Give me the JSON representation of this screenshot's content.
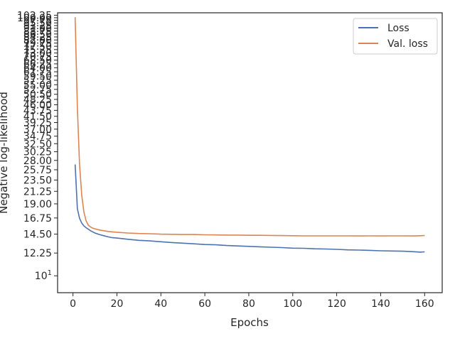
{
  "chart_data": {
    "type": "line",
    "xlabel": "Epochs",
    "ylabel": "Negative log-likelihood",
    "yscale": "log",
    "xlim": [
      -7,
      168
    ],
    "ylim": [
      8.6,
      104.5
    ],
    "x_ticks": [
      0,
      20,
      40,
      60,
      80,
      100,
      120,
      140,
      160
    ],
    "y_tick_values": [
      10,
      12.25,
      14.5,
      16.75,
      19.0,
      21.25,
      23.5,
      25.75,
      28.0,
      30.25,
      32.5,
      34.75,
      37.0,
      39.25,
      41.5,
      43.75,
      46.0,
      48.25,
      50.5,
      52.75,
      55.0,
      57.25,
      59.5,
      61.75,
      64.0,
      66.25,
      68.5,
      70.75,
      73.0,
      75.25,
      77.5,
      79.75,
      82.0,
      84.25,
      86.5,
      88.75,
      91.0,
      93.25,
      95.5,
      97.75,
      100.0,
      102.25
    ],
    "y_tick_labels": [
      "10^1",
      "12.25",
      "14.50",
      "16.75",
      "19.00",
      "21.25",
      "23.50",
      "25.75",
      "28.00",
      "30.25",
      "32.50",
      "34.75",
      "37.00",
      "39.25",
      "41.50",
      "43.75",
      "46.00",
      "48.25",
      "50.50",
      "52.75",
      "55.00",
      "57.25",
      "59.50",
      "61.75",
      "64.00",
      "66.25",
      "68.50",
      "70.75",
      "73.00",
      "75.25",
      "77.50",
      "79.75",
      "82.00",
      "84.25",
      "86.50",
      "88.75",
      "91.00",
      "93.25",
      "95.50",
      "97.75",
      "100.00",
      "102.25"
    ],
    "legend_position": "top-right",
    "series": [
      {
        "name": "Loss",
        "color": "#4c72b0",
        "x": [
          1,
          2,
          3,
          4,
          5,
          6,
          7,
          8,
          9,
          10,
          12,
          14,
          16,
          18,
          20,
          25,
          30,
          35,
          40,
          45,
          50,
          55,
          60,
          65,
          70,
          75,
          80,
          85,
          90,
          95,
          100,
          105,
          110,
          115,
          120,
          125,
          130,
          135,
          140,
          145,
          150,
          155,
          158,
          160
        ],
        "y": [
          27.0,
          18.2,
          16.7,
          16.0,
          15.6,
          15.35,
          15.15,
          14.95,
          14.8,
          14.65,
          14.45,
          14.3,
          14.15,
          14.05,
          14.0,
          13.85,
          13.72,
          13.65,
          13.55,
          13.45,
          13.38,
          13.3,
          13.22,
          13.18,
          13.1,
          13.05,
          13.0,
          12.95,
          12.9,
          12.86,
          12.8,
          12.78,
          12.72,
          12.7,
          12.66,
          12.6,
          12.58,
          12.55,
          12.5,
          12.48,
          12.45,
          12.4,
          12.35,
          12.38
        ]
      },
      {
        "name": "Val. loss",
        "color": "#dd8452",
        "x": [
          1,
          2,
          3,
          4,
          5,
          6,
          7,
          8,
          9,
          10,
          12,
          14,
          16,
          18,
          20,
          25,
          30,
          35,
          40,
          45,
          50,
          55,
          60,
          65,
          70,
          75,
          80,
          85,
          90,
          95,
          100,
          105,
          110,
          115,
          120,
          125,
          130,
          135,
          140,
          145,
          150,
          155,
          158,
          160
        ],
        "y": [
          100.5,
          45.0,
          27.0,
          20.5,
          17.6,
          16.3,
          15.7,
          15.45,
          15.3,
          15.2,
          15.05,
          14.95,
          14.85,
          14.8,
          14.75,
          14.65,
          14.58,
          14.55,
          14.5,
          14.48,
          14.45,
          14.45,
          14.42,
          14.4,
          14.38,
          14.38,
          14.35,
          14.35,
          14.33,
          14.32,
          14.3,
          14.28,
          14.28,
          14.28,
          14.28,
          14.28,
          14.27,
          14.28,
          14.27,
          14.28,
          14.28,
          14.27,
          14.3,
          14.32
        ]
      }
    ]
  }
}
